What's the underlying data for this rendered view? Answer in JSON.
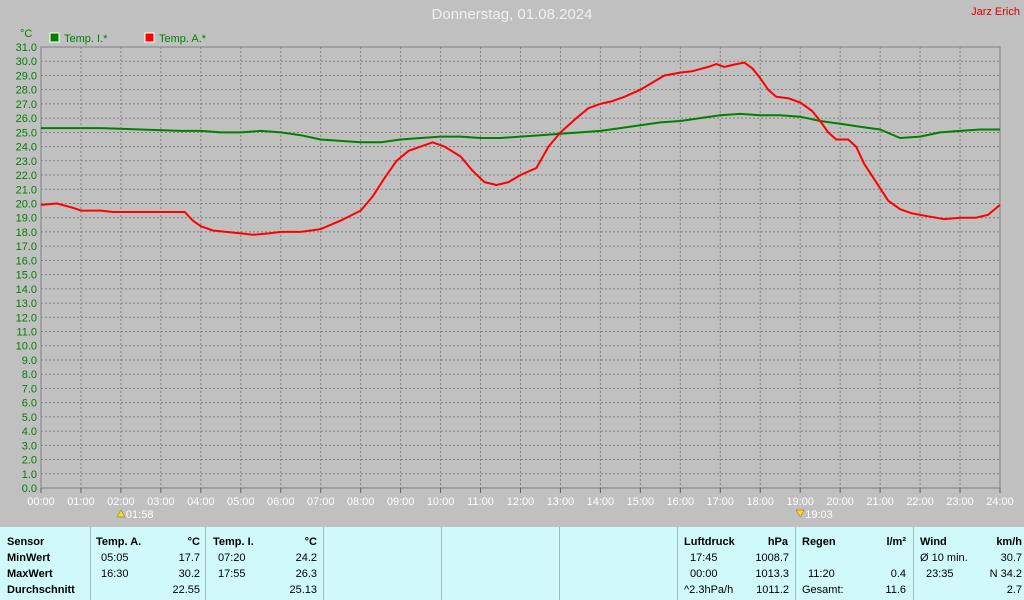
{
  "header": {
    "title": "Donnerstag, 01.08.2024",
    "author": "Jarz Erich"
  },
  "chart_data": {
    "type": "line",
    "y_unit": "°C",
    "ylim": [
      0,
      31
    ],
    "y_ticks": [
      "0.0",
      "1.0",
      "2.0",
      "3.0",
      "4.0",
      "5.0",
      "6.0",
      "7.0",
      "8.0",
      "9.0",
      "10.0",
      "11.0",
      "12.0",
      "13.0",
      "14.0",
      "15.0",
      "16.0",
      "17.0",
      "18.0",
      "19.0",
      "20.0",
      "21.0",
      "22.0",
      "23.0",
      "24.0",
      "25.0",
      "26.0",
      "27.0",
      "28.0",
      "29.0",
      "30.0",
      "31.0"
    ],
    "x_ticks": [
      "00:00",
      "01:00",
      "02:00",
      "03:00",
      "04:00",
      "05:00",
      "06:00",
      "07:00",
      "08:00",
      "09:00",
      "10:00",
      "11:00",
      "12:00",
      "13:00",
      "14:00",
      "15:00",
      "16:00",
      "17:00",
      "18:00",
      "19:00",
      "20:00",
      "21:00",
      "22:00",
      "23:00",
      "24:00"
    ],
    "grid": true,
    "legend_position": "top-left",
    "series": [
      {
        "name": "Temp. I.*",
        "color": "#008000",
        "points": [
          [
            0,
            25.3
          ],
          [
            0.7,
            25.3
          ],
          [
            1.5,
            25.3
          ],
          [
            2.5,
            25.2
          ],
          [
            3.5,
            25.1
          ],
          [
            4.0,
            25.1
          ],
          [
            4.5,
            25.0
          ],
          [
            5.0,
            25.0
          ],
          [
            5.5,
            25.1
          ],
          [
            6.0,
            25.0
          ],
          [
            6.5,
            24.8
          ],
          [
            7.0,
            24.5
          ],
          [
            7.5,
            24.4
          ],
          [
            8.0,
            24.3
          ],
          [
            8.5,
            24.3
          ],
          [
            9.0,
            24.5
          ],
          [
            9.5,
            24.6
          ],
          [
            10.0,
            24.7
          ],
          [
            10.5,
            24.7
          ],
          [
            11.0,
            24.6
          ],
          [
            11.5,
            24.6
          ],
          [
            12.0,
            24.7
          ],
          [
            12.5,
            24.8
          ],
          [
            13.0,
            24.9
          ],
          [
            13.5,
            25.0
          ],
          [
            14.0,
            25.1
          ],
          [
            14.5,
            25.3
          ],
          [
            15.0,
            25.5
          ],
          [
            15.5,
            25.7
          ],
          [
            16.0,
            25.8
          ],
          [
            16.5,
            26.0
          ],
          [
            17.0,
            26.2
          ],
          [
            17.5,
            26.3
          ],
          [
            18.0,
            26.2
          ],
          [
            18.5,
            26.2
          ],
          [
            19.0,
            26.1
          ],
          [
            19.5,
            25.8
          ],
          [
            20.0,
            25.6
          ],
          [
            20.5,
            25.4
          ],
          [
            21.0,
            25.2
          ],
          [
            21.5,
            24.6
          ],
          [
            22.0,
            24.7
          ],
          [
            22.5,
            25.0
          ],
          [
            23.0,
            25.1
          ],
          [
            23.5,
            25.2
          ],
          [
            24,
            25.2
          ]
        ]
      },
      {
        "name": "Temp. A.*",
        "color": "#ff0000",
        "points": [
          [
            0,
            19.9
          ],
          [
            0.4,
            20.0
          ],
          [
            0.8,
            19.7
          ],
          [
            1.0,
            19.5
          ],
          [
            1.5,
            19.5
          ],
          [
            1.8,
            19.4
          ],
          [
            2.5,
            19.4
          ],
          [
            3.0,
            19.4
          ],
          [
            3.6,
            19.4
          ],
          [
            3.8,
            18.8
          ],
          [
            4.0,
            18.4
          ],
          [
            4.3,
            18.1
          ],
          [
            5.0,
            17.9
          ],
          [
            5.3,
            17.8
          ],
          [
            5.7,
            17.9
          ],
          [
            6.0,
            18.0
          ],
          [
            6.5,
            18.0
          ],
          [
            7.0,
            18.2
          ],
          [
            7.5,
            18.8
          ],
          [
            8.0,
            19.5
          ],
          [
            8.3,
            20.5
          ],
          [
            8.6,
            21.8
          ],
          [
            8.9,
            23.0
          ],
          [
            9.2,
            23.7
          ],
          [
            9.5,
            24.0
          ],
          [
            9.8,
            24.3
          ],
          [
            10.1,
            24.0
          ],
          [
            10.5,
            23.3
          ],
          [
            10.8,
            22.3
          ],
          [
            11.1,
            21.5
          ],
          [
            11.4,
            21.3
          ],
          [
            11.7,
            21.5
          ],
          [
            12.0,
            22.0
          ],
          [
            12.4,
            22.5
          ],
          [
            12.7,
            24.0
          ],
          [
            13.0,
            25.0
          ],
          [
            13.4,
            26.0
          ],
          [
            13.7,
            26.7
          ],
          [
            14.0,
            27.0
          ],
          [
            14.3,
            27.2
          ],
          [
            14.6,
            27.5
          ],
          [
            15.0,
            28.0
          ],
          [
            15.3,
            28.5
          ],
          [
            15.6,
            29.0
          ],
          [
            16.0,
            29.2
          ],
          [
            16.3,
            29.3
          ],
          [
            16.7,
            29.6
          ],
          [
            16.9,
            29.8
          ],
          [
            17.1,
            29.6
          ],
          [
            17.4,
            29.8
          ],
          [
            17.6,
            29.9
          ],
          [
            17.8,
            29.5
          ],
          [
            18.0,
            28.8
          ],
          [
            18.2,
            28.0
          ],
          [
            18.4,
            27.5
          ],
          [
            18.7,
            27.4
          ],
          [
            19.0,
            27.1
          ],
          [
            19.3,
            26.5
          ],
          [
            19.5,
            25.8
          ],
          [
            19.7,
            25.0
          ],
          [
            19.9,
            24.5
          ],
          [
            20.2,
            24.5
          ],
          [
            20.4,
            24.0
          ],
          [
            20.6,
            22.8
          ],
          [
            20.9,
            21.5
          ],
          [
            21.2,
            20.2
          ],
          [
            21.5,
            19.6
          ],
          [
            21.8,
            19.3
          ],
          [
            22.2,
            19.1
          ],
          [
            22.6,
            18.9
          ],
          [
            23.0,
            19.0
          ],
          [
            23.4,
            19.0
          ],
          [
            23.7,
            19.2
          ],
          [
            24,
            19.9
          ]
        ]
      }
    ],
    "markers": [
      {
        "symbol": "sunrise",
        "time_label": "01:58",
        "x": 2
      },
      {
        "symbol": "sunset",
        "time_label": "19:03",
        "x": 19
      }
    ]
  },
  "stats": {
    "row_labels": [
      "Sensor",
      "MinWert",
      "MaxWert",
      "Durchschnitt"
    ],
    "temp_a": {
      "title": "Temp. A.",
      "unit": "°C",
      "min_time": "05:05",
      "min_val": "17.7",
      "max_time": "16:30",
      "max_val": "30.2",
      "avg": "22.55"
    },
    "temp_i": {
      "title": "Temp. I.",
      "unit": "°C",
      "min_time": "07:20",
      "min_val": "24.2",
      "max_time": "17:55",
      "max_val": "26.3",
      "avg": "25.13"
    },
    "pressure": {
      "title": "Luftdruck",
      "unit": "hPa",
      "min_time": "17:45",
      "min_val": "1008.7",
      "max_time": "00:00",
      "max_val": "1013.3",
      "trend_label": "^2.3hPa/h",
      "trend_val": "1011.2"
    },
    "rain": {
      "title": "Regen",
      "unit": "l/m²",
      "time": "11:20",
      "val": "0.4",
      "total_label": "Gesamt:",
      "total_val": "11.6"
    },
    "wind": {
      "title": "Wind",
      "unit": "km/h",
      "avg_label": "Ø 10 min.",
      "avg_val": "30.7",
      "max_time": "23:35",
      "max_val": "N 34.2",
      "val3": "2.7"
    }
  }
}
